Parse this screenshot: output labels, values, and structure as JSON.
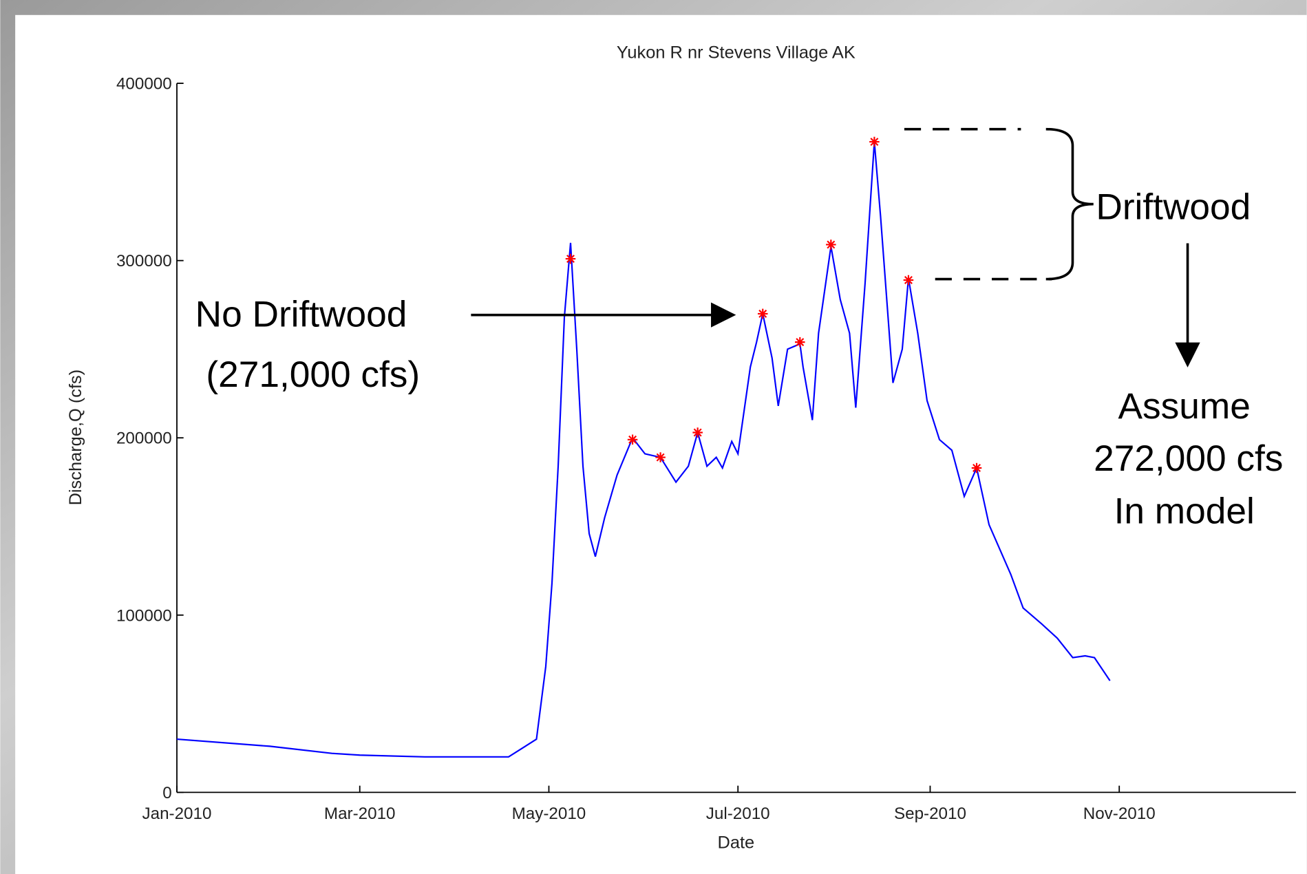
{
  "chart_data": {
    "type": "line",
    "title": "Yukon R nr Stevens Village AK",
    "xlabel": "Date",
    "ylabel": "Discharge,Q (cfs)",
    "xlim": [
      0,
      361
    ],
    "xticks": [
      {
        "value": 0,
        "label": "Jan-2010"
      },
      {
        "value": 59,
        "label": "Mar-2010"
      },
      {
        "value": 120,
        "label": "May-2010"
      },
      {
        "value": 181,
        "label": "Jul-2010"
      },
      {
        "value": 243,
        "label": "Sep-2010"
      },
      {
        "value": 304,
        "label": "Nov-2010"
      }
    ],
    "ylim": [
      0,
      400000
    ],
    "yticks": [
      0,
      100000,
      200000,
      300000,
      400000
    ],
    "series": [
      {
        "color": "#0000ff",
        "x": [
          0,
          30,
          50,
          59,
          80,
          107,
          116,
          119,
          121,
          123,
          125,
          127,
          129,
          131,
          133,
          135,
          138,
          142,
          147,
          151,
          156,
          161,
          165,
          168,
          171,
          174,
          176,
          179,
          181,
          185,
          187,
          189,
          192,
          194,
          197,
          201,
          202,
          205,
          207,
          211,
          214,
          217,
          219,
          222,
          225,
          227,
          231,
          234,
          236,
          239,
          242,
          246,
          250,
          254,
          258,
          262,
          269,
          273,
          279,
          284,
          289,
          293,
          296,
          301
        ],
        "values": [
          30000,
          26000,
          22000,
          21000,
          20000,
          20000,
          30000,
          71000,
          118000,
          184000,
          268000,
          310000,
          250000,
          184000,
          146000,
          133000,
          155000,
          179000,
          200000,
          191000,
          189000,
          175000,
          184000,
          203000,
          184000,
          189000,
          183000,
          198000,
          191000,
          240000,
          254000,
          270000,
          245000,
          218000,
          250000,
          253000,
          240000,
          210000,
          259000,
          308000,
          278000,
          259000,
          217000,
          287000,
          367000,
          325000,
          231000,
          250000,
          290000,
          259000,
          221000,
          199000,
          193000,
          167000,
          183000,
          151000,
          123000,
          104000,
          95000,
          87000,
          76000,
          77000,
          76000,
          63000
        ]
      },
      {
        "color": "#ff0000",
        "marker": "*",
        "x": [
          127,
          147,
          156,
          168,
          189,
          201,
          211,
          225,
          236,
          258
        ],
        "values": [
          301000,
          199000,
          189000,
          203000,
          270000,
          254000,
          309000,
          367000,
          289000,
          183000
        ]
      }
    ],
    "annotations": [
      "No Driftwood",
      "(271,000 cfs)",
      "Driftwood",
      "Assume",
      "272,000 cfs",
      "In model"
    ]
  }
}
